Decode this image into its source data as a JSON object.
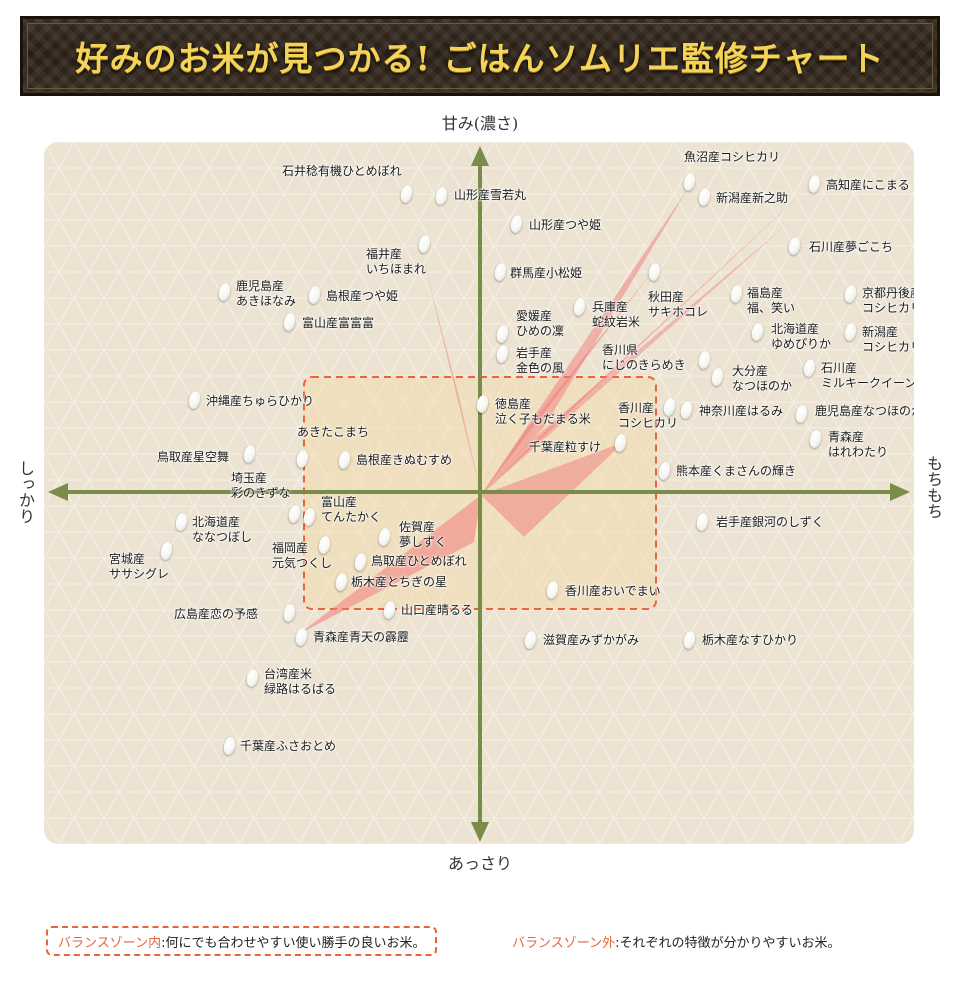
{
  "title": "好みのお米が見つかる! ごはんソムリエ監修チャート",
  "axes": {
    "top": "甘み(濃さ)",
    "bottom": "あっさり",
    "left": "しっかり",
    "right": "もちもち"
  },
  "colors": {
    "axis": "#7a8c4a",
    "zone_border": "#e9643a",
    "zone_fill": "#f3d9a6",
    "fan": "#f07c7c",
    "title_text": "#f4d35a"
  },
  "rice_items": [
    {
      "label": "魚沼産コシヒカリ"
    },
    {
      "label": "石井稔有機ひとめぼれ"
    },
    {
      "label": "山形産雪若丸"
    },
    {
      "label": "新潟産新之助"
    },
    {
      "label": "高知産にこまる"
    },
    {
      "label": "山形産つや姫"
    },
    {
      "label": "石川産夢ごこち"
    },
    {
      "label": "福井産\nいちほまれ"
    },
    {
      "label": "群馬産小松姫"
    },
    {
      "label": "鹿児島産\nあきほなみ"
    },
    {
      "label": "島根産つや姫"
    },
    {
      "label": "秋田産\nサキホコレ"
    },
    {
      "label": "福島産\n福、笑い"
    },
    {
      "label": "京都丹後産\nコシヒカリ"
    },
    {
      "label": "兵庫産\n蛇紋岩米"
    },
    {
      "label": "愛媛産\nひめの凜"
    },
    {
      "label": "富山産富富富"
    },
    {
      "label": "北海道産\nゆめぴりか"
    },
    {
      "label": "新潟産\nコシヒカリ"
    },
    {
      "label": "岩手産\n金色の風"
    },
    {
      "label": "香川県\nにじのきらめき"
    },
    {
      "label": "大分産\nなつほのか"
    },
    {
      "label": "石川産\nミルキークイーン"
    },
    {
      "label": "沖縄産ちゅらひかり"
    },
    {
      "label": "徳島産\n泣く子もだまる米"
    },
    {
      "label": "香川産\nコシヒカリ"
    },
    {
      "label": "神奈川産はるみ"
    },
    {
      "label": "鹿児島産なつほのか"
    },
    {
      "label": "あきたこまち"
    },
    {
      "label": "青森産\nはれわたり"
    },
    {
      "label": "鳥取産星空舞"
    },
    {
      "label": "千葉産粒すけ"
    },
    {
      "label": "島根産きぬむすめ"
    },
    {
      "label": "熊本産くまさんの輝き"
    },
    {
      "label": "埼玉産\n彩のきずな"
    },
    {
      "label": "富山産\nてんたかく"
    },
    {
      "label": "北海道産\nななつぼし"
    },
    {
      "label": "佐賀産\n夢しずく"
    },
    {
      "label": "岩手産銀河のしずく"
    },
    {
      "label": "福岡産\n元気つくし"
    },
    {
      "label": "宮城産\nササシグレ"
    },
    {
      "label": "鳥取産ひとめぼれ"
    },
    {
      "label": "栃木産とちぎの星"
    },
    {
      "label": "香川産おいでまい"
    },
    {
      "label": "広島産恋の予感"
    },
    {
      "label": "山口産晴るる"
    },
    {
      "label": "青森産青天の霹靂"
    },
    {
      "label": "滋賀産みずかがみ"
    },
    {
      "label": "栃木産なすひかり"
    },
    {
      "label": "台湾産米\n緑路はるばる"
    },
    {
      "label": "千葉産ふさおとめ"
    }
  ],
  "legend": {
    "inside_key": "バランスゾーン内",
    "inside_desc": ":何にでも合わせやすい使い勝手の良いお米。",
    "outside_key": "バランスゾーン外",
    "outside_desc": ":それぞれの特徴が分かりやすいお米。"
  }
}
